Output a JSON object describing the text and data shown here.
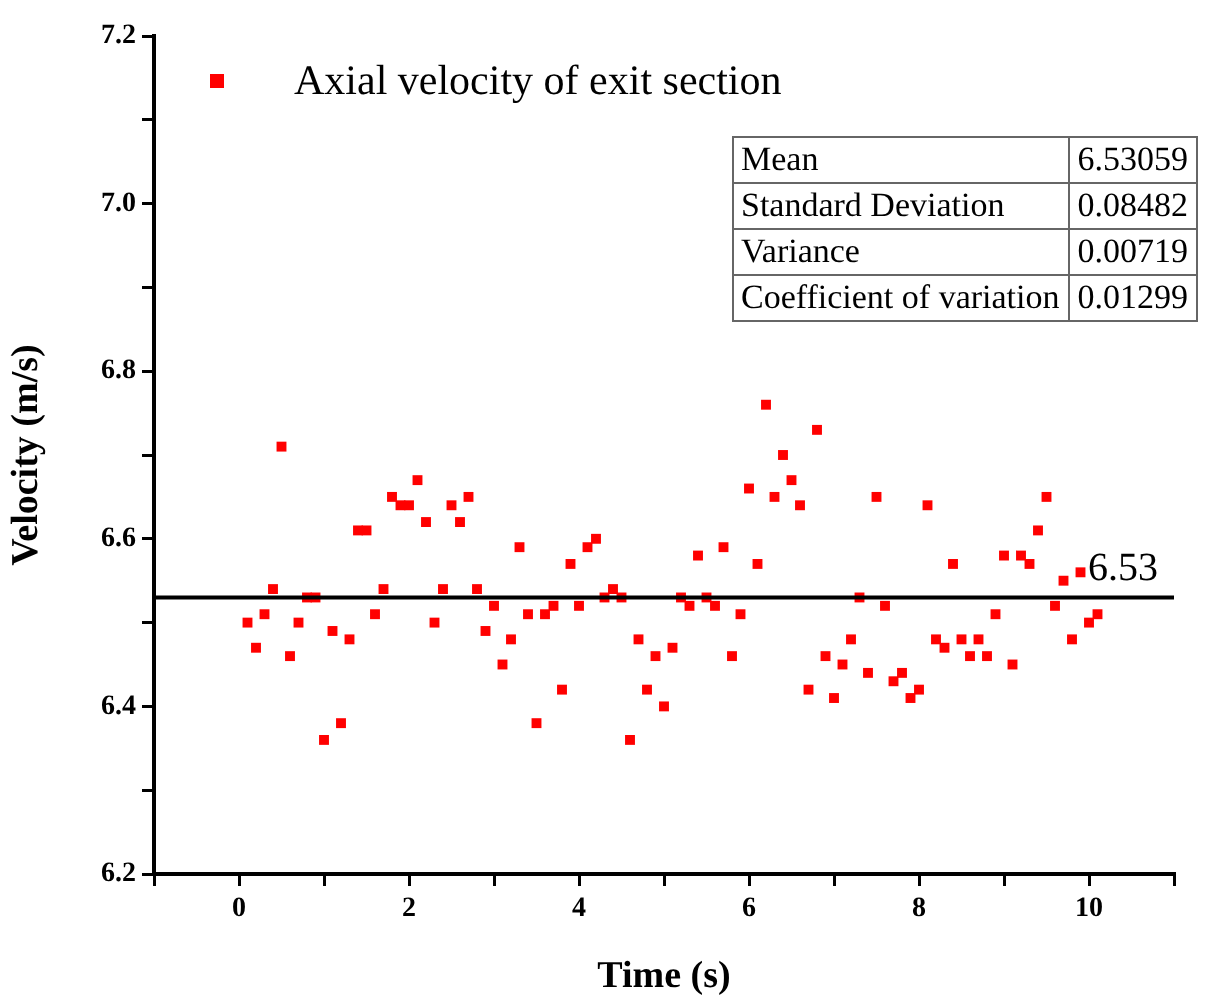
{
  "chart_data": {
    "type": "scatter",
    "xlabel": "Time (s)",
    "ylabel": "Velocity (m/s)",
    "xlim": [
      -1,
      11
    ],
    "xticks": [
      {
        "value": -1,
        "label": null
      },
      0,
      {
        "value": 1,
        "label": null
      },
      2,
      {
        "value": 3,
        "label": null
      },
      4,
      {
        "value": 5,
        "label": null
      },
      6,
      {
        "value": 7,
        "label": null
      },
      8,
      {
        "value": 9,
        "label": null
      },
      10,
      {
        "value": 11,
        "label": null
      }
    ],
    "ylim": [
      6.2,
      7.2
    ],
    "yticks": [
      6.2,
      {
        "value": 6.3,
        "label": null
      },
      6.4,
      {
        "value": 6.5,
        "label": null
      },
      6.6,
      {
        "value": 6.7,
        "label": null
      },
      6.8,
      {
        "value": 6.9,
        "label": null
      },
      {
        "value": 7.0,
        "label": "7.0"
      },
      {
        "value": 7.1,
        "label": null
      },
      7.2
    ],
    "grid": false,
    "legend": "top left",
    "marker": "square",
    "ref_lines": [
      {
        "axis": "y",
        "value": 6.53,
        "label": "6.53",
        "color": "#000000"
      }
    ],
    "annotations": [
      "Mean",
      "6.53059",
      "Standard Deviation",
      "0.08482",
      "Variance",
      "0.00719",
      "Coefficient of variation",
      "0.01299"
    ],
    "series": [
      {
        "name": "Axial velocity of exit section",
        "color": "#ff0000",
        "x": [
          0.1,
          0.2,
          0.3,
          0.4,
          0.5,
          0.6,
          0.7,
          0.8,
          0.9,
          1.0,
          1.1,
          1.2,
          1.3,
          1.4,
          1.5,
          1.6,
          1.7,
          1.8,
          1.9,
          2.0,
          2.1,
          2.2,
          2.3,
          2.4,
          2.5,
          2.6,
          2.7,
          2.8,
          2.9,
          3.0,
          3.1,
          3.2,
          3.3,
          3.4,
          3.5,
          3.6,
          3.7,
          3.8,
          3.9,
          4.0,
          4.1,
          4.2,
          4.3,
          4.4,
          4.5,
          4.6,
          4.7,
          4.8,
          4.9,
          5.0,
          5.1,
          5.2,
          5.3,
          5.4,
          5.5,
          5.6,
          5.7,
          5.8,
          5.9,
          6.0,
          6.1,
          6.2,
          6.3,
          6.4,
          6.5,
          6.6,
          6.7,
          6.8,
          6.9,
          7.0,
          7.1,
          7.2,
          7.3,
          7.4,
          7.5,
          7.6,
          7.7,
          7.8,
          7.9,
          8.0,
          8.1,
          8.2,
          8.3,
          8.4,
          8.5,
          8.6,
          8.7,
          8.8,
          8.9,
          9.0,
          9.1,
          9.2,
          9.3,
          9.4,
          9.5,
          9.6,
          9.7,
          9.8,
          9.9,
          10.0,
          10.1
        ],
        "values": [
          6.5,
          6.47,
          6.51,
          6.54,
          6.71,
          6.46,
          6.5,
          6.53,
          6.53,
          6.36,
          6.49,
          6.38,
          6.48,
          6.61,
          6.61,
          6.51,
          6.54,
          6.65,
          6.64,
          6.64,
          6.67,
          6.62,
          6.5,
          6.54,
          6.64,
          6.62,
          6.65,
          6.54,
          6.49,
          6.52,
          6.45,
          6.48,
          6.59,
          6.51,
          6.38,
          6.51,
          6.52,
          6.42,
          6.57,
          6.52,
          6.59,
          6.6,
          6.53,
          6.54,
          6.53,
          6.36,
          6.48,
          6.42,
          6.46,
          6.4,
          6.47,
          6.53,
          6.52,
          6.58,
          6.53,
          6.52,
          6.59,
          6.46,
          6.51,
          6.66,
          6.57,
          6.76,
          6.65,
          6.7,
          6.67,
          6.64,
          6.42,
          6.73,
          6.46,
          6.41,
          6.45,
          6.48,
          6.53,
          6.44,
          6.65,
          6.52,
          6.43,
          6.44,
          6.41,
          6.42,
          6.64,
          6.48,
          6.47,
          6.57,
          6.48,
          6.46,
          6.48,
          6.46,
          6.51,
          6.58,
          6.45,
          6.58,
          6.57,
          6.61,
          6.65,
          6.52,
          6.55,
          6.48,
          6.56,
          6.5,
          6.51
        ]
      }
    ]
  }
}
